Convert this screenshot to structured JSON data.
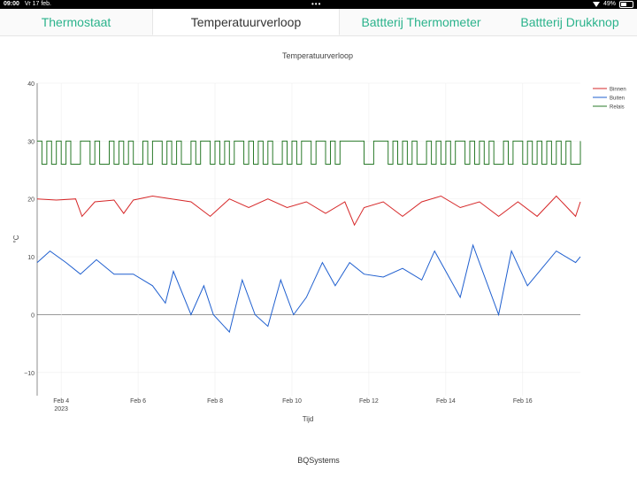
{
  "status_bar": {
    "time": "09:00",
    "date": "Vr 17 feb.",
    "battery": "49%",
    "battery_level": 0.49
  },
  "tabs": [
    {
      "label": "Thermostaat",
      "active": false
    },
    {
      "label": "Temperatuurverloop",
      "active": true
    },
    {
      "label": "Battterij Thermometer",
      "active": false
    },
    {
      "label": "Battterij Drukknop",
      "active": false
    }
  ],
  "footer": "BQSystems",
  "colors": {
    "binnen": "#d62728",
    "buiten": "#1f5fcf",
    "relais": "#2a7a2a",
    "tab_text": "#2bb38c"
  },
  "chart_data": {
    "type": "line",
    "title": "Temperatuurverloop",
    "xlabel": "Tijd",
    "ylabel": "°C",
    "x_range": [
      "2023-02-03T09:00",
      "2023-02-17T12:00"
    ],
    "ylim": [
      -14,
      40
    ],
    "yticks": [
      -10,
      0,
      10,
      20,
      30,
      40
    ],
    "xticks": [
      {
        "date": "2023-02-04",
        "label": "Feb 4",
        "sublabel": "2023"
      },
      {
        "date": "2023-02-06",
        "label": "Feb 6",
        "sublabel": ""
      },
      {
        "date": "2023-02-08",
        "label": "Feb 8",
        "sublabel": ""
      },
      {
        "date": "2023-02-10",
        "label": "Feb 10",
        "sublabel": ""
      },
      {
        "date": "2023-02-12",
        "label": "Feb 12",
        "sublabel": ""
      },
      {
        "date": "2023-02-14",
        "label": "Feb 14",
        "sublabel": ""
      },
      {
        "date": "2023-02-16",
        "label": "Feb 16",
        "sublabel": ""
      }
    ],
    "grid": true,
    "legend_position": "top-right",
    "series": [
      {
        "name": "Binnen",
        "color": "#d62728",
        "x": [
          "2023-02-03T09:00",
          "2023-02-03T21:00",
          "2023-02-04T09:00",
          "2023-02-04T13:00",
          "2023-02-04T21:00",
          "2023-02-05T09:00",
          "2023-02-05T15:00",
          "2023-02-05T21:00",
          "2023-02-06T09:00",
          "2023-02-06T21:00",
          "2023-02-07T09:00",
          "2023-02-07T21:00",
          "2023-02-08T09:00",
          "2023-02-08T21:00",
          "2023-02-09T09:00",
          "2023-02-09T21:00",
          "2023-02-10T09:00",
          "2023-02-10T21:00",
          "2023-02-11T09:00",
          "2023-02-11T15:00",
          "2023-02-11T21:00",
          "2023-02-12T09:00",
          "2023-02-12T21:00",
          "2023-02-13T09:00",
          "2023-02-13T21:00",
          "2023-02-14T09:00",
          "2023-02-14T21:00",
          "2023-02-15T09:00",
          "2023-02-15T21:00",
          "2023-02-16T09:00",
          "2023-02-16T21:00",
          "2023-02-17T09:00",
          "2023-02-17T12:00"
        ],
        "values": [
          20,
          19.8,
          20,
          17,
          19.5,
          19.8,
          17.5,
          19.8,
          20.5,
          20,
          19.5,
          17,
          20,
          18.5,
          20,
          18.5,
          19.5,
          17.5,
          19.5,
          15.5,
          18.5,
          19.5,
          17,
          19.5,
          20.5,
          18.5,
          19.5,
          17,
          19.5,
          17,
          20.5,
          17,
          19.5
        ]
      },
      {
        "name": "Buiten",
        "color": "#1f5fcf",
        "x": [
          "2023-02-03T09:00",
          "2023-02-03T17:00",
          "2023-02-04T03:00",
          "2023-02-04T12:00",
          "2023-02-04T22:00",
          "2023-02-05T09:00",
          "2023-02-05T21:00",
          "2023-02-06T09:00",
          "2023-02-06T17:00",
          "2023-02-06T22:00",
          "2023-02-07T09:00",
          "2023-02-07T17:00",
          "2023-02-07T23:00",
          "2023-02-08T09:00",
          "2023-02-08T17:00",
          "2023-02-09T01:00",
          "2023-02-09T09:00",
          "2023-02-09T17:00",
          "2023-02-10T01:00",
          "2023-02-10T09:00",
          "2023-02-10T19:00",
          "2023-02-11T03:00",
          "2023-02-11T12:00",
          "2023-02-11T21:00",
          "2023-02-12T09:00",
          "2023-02-12T21:00",
          "2023-02-13T09:00",
          "2023-02-13T17:00",
          "2023-02-14T09:00",
          "2023-02-14T17:00",
          "2023-02-15T09:00",
          "2023-02-15T17:00",
          "2023-02-16T03:00",
          "2023-02-16T12:00",
          "2023-02-16T21:00",
          "2023-02-17T09:00",
          "2023-02-17T12:00"
        ],
        "values": [
          9,
          11,
          9,
          7,
          9.5,
          7,
          7,
          5,
          2,
          7.5,
          0,
          5,
          0,
          -3,
          6,
          0,
          -2,
          6,
          0,
          3,
          9,
          5,
          9,
          7,
          6.5,
          8,
          6,
          11,
          3,
          12,
          0,
          11,
          5,
          8,
          11,
          9,
          10
        ]
      },
      {
        "name": "Relais",
        "color": "#2a7a2a",
        "x": [
          "2023-02-03T09:00",
          "2023-02-03T12:00",
          "2023-02-03T15:00",
          "2023-02-03T18:00",
          "2023-02-03T21:00",
          "2023-02-04T00:00",
          "2023-02-04T03:00",
          "2023-02-04T06:00",
          "2023-02-04T09:00",
          "2023-02-04T12:00",
          "2023-02-04T15:00",
          "2023-02-04T18:00",
          "2023-02-04T21:00",
          "2023-02-05T00:00",
          "2023-02-05T03:00",
          "2023-02-05T06:00",
          "2023-02-05T09:00",
          "2023-02-05T12:00",
          "2023-02-05T15:00",
          "2023-02-05T18:00",
          "2023-02-05T21:00",
          "2023-02-06T00:00",
          "2023-02-06T03:00",
          "2023-02-06T06:00",
          "2023-02-06T09:00",
          "2023-02-06T12:00",
          "2023-02-06T15:00",
          "2023-02-06T18:00",
          "2023-02-06T21:00",
          "2023-02-07T00:00",
          "2023-02-07T03:00",
          "2023-02-07T06:00",
          "2023-02-07T09:00",
          "2023-02-07T12:00",
          "2023-02-07T15:00",
          "2023-02-07T18:00",
          "2023-02-07T21:00",
          "2023-02-08T00:00",
          "2023-02-08T03:00",
          "2023-02-08T06:00",
          "2023-02-08T09:00",
          "2023-02-08T12:00",
          "2023-02-08T15:00",
          "2023-02-08T18:00",
          "2023-02-08T21:00",
          "2023-02-09T00:00",
          "2023-02-09T03:00",
          "2023-02-09T06:00",
          "2023-02-09T09:00",
          "2023-02-09T12:00",
          "2023-02-09T15:00",
          "2023-02-09T18:00",
          "2023-02-09T21:00",
          "2023-02-10T00:00",
          "2023-02-10T03:00",
          "2023-02-10T06:00",
          "2023-02-10T09:00",
          "2023-02-10T12:00",
          "2023-02-10T15:00",
          "2023-02-10T18:00",
          "2023-02-10T21:00",
          "2023-02-11T00:00",
          "2023-02-11T03:00",
          "2023-02-11T06:00",
          "2023-02-11T09:00",
          "2023-02-11T12:00",
          "2023-02-11T15:00",
          "2023-02-11T18:00",
          "2023-02-11T21:00",
          "2023-02-12T00:00",
          "2023-02-12T03:00",
          "2023-02-12T06:00",
          "2023-02-12T09:00",
          "2023-02-12T12:00",
          "2023-02-12T15:00",
          "2023-02-12T18:00",
          "2023-02-12T21:00",
          "2023-02-13T00:00",
          "2023-02-13T03:00",
          "2023-02-13T06:00",
          "2023-02-13T09:00",
          "2023-02-13T12:00",
          "2023-02-13T15:00",
          "2023-02-13T18:00",
          "2023-02-13T21:00",
          "2023-02-14T00:00",
          "2023-02-14T03:00",
          "2023-02-14T06:00",
          "2023-02-14T09:00",
          "2023-02-14T12:00",
          "2023-02-14T15:00",
          "2023-02-14T18:00",
          "2023-02-14T21:00",
          "2023-02-15T00:00",
          "2023-02-15T03:00",
          "2023-02-15T06:00",
          "2023-02-15T09:00",
          "2023-02-15T12:00",
          "2023-02-15T15:00",
          "2023-02-15T18:00",
          "2023-02-15T21:00",
          "2023-02-16T00:00",
          "2023-02-16T03:00",
          "2023-02-16T06:00",
          "2023-02-16T09:00",
          "2023-02-16T12:00",
          "2023-02-16T15:00",
          "2023-02-16T18:00",
          "2023-02-16T21:00",
          "2023-02-17T00:00",
          "2023-02-17T03:00",
          "2023-02-17T06:00",
          "2023-02-17T09:00",
          "2023-02-17T12:00"
        ],
        "values": [
          30,
          26,
          30,
          26,
          30,
          26,
          30,
          26,
          26,
          30,
          30,
          26,
          30,
          26,
          26,
          30,
          26,
          30,
          26,
          30,
          26,
          26,
          30,
          26,
          30,
          30,
          26,
          30,
          26,
          30,
          26,
          26,
          30,
          26,
          30,
          30,
          26,
          30,
          26,
          30,
          26,
          30,
          30,
          26,
          30,
          26,
          30,
          26,
          30,
          26,
          26,
          30,
          26,
          30,
          26,
          30,
          30,
          26,
          30,
          30,
          26,
          30,
          26,
          30,
          30,
          30,
          30,
          30,
          26,
          26,
          30,
          30,
          30,
          26,
          30,
          26,
          30,
          26,
          30,
          26,
          26,
          30,
          26,
          30,
          26,
          30,
          26,
          30,
          30,
          26,
          30,
          26,
          30,
          26,
          30,
          26,
          26,
          30,
          26,
          30,
          30,
          26,
          30,
          26,
          30,
          26,
          30,
          26,
          30,
          26,
          30,
          26,
          26,
          30
        ]
      }
    ]
  }
}
